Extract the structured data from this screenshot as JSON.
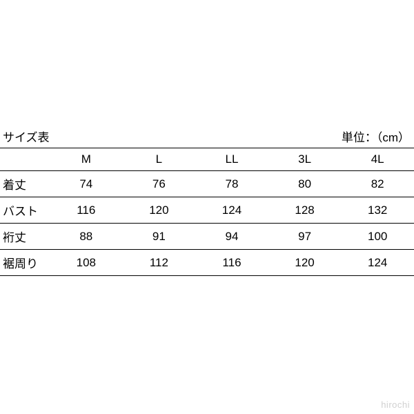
{
  "title": "サイズ表",
  "unit_label": "単位：（cm）",
  "table": {
    "sizes": [
      "M",
      "L",
      "LL",
      "3L",
      "4L"
    ],
    "rows": [
      {
        "label": "着丈",
        "values": [
          74,
          76,
          78,
          80,
          82
        ]
      },
      {
        "label": "バスト",
        "values": [
          116,
          120,
          124,
          128,
          132
        ]
      },
      {
        "label": "裄丈",
        "values": [
          88,
          91,
          94,
          97,
          100
        ]
      },
      {
        "label": "裾周り",
        "values": [
          108,
          112,
          116,
          120,
          124
        ]
      }
    ]
  },
  "watermark": "hirochi",
  "style": {
    "background_color": "#ffffff",
    "text_color": "#000000",
    "border_color": "#000000",
    "watermark_color": "#d0d0d0",
    "font_size_body": 17,
    "font_size_watermark": 13,
    "top_rule_width": 1.5,
    "row_rule_width": 1
  }
}
